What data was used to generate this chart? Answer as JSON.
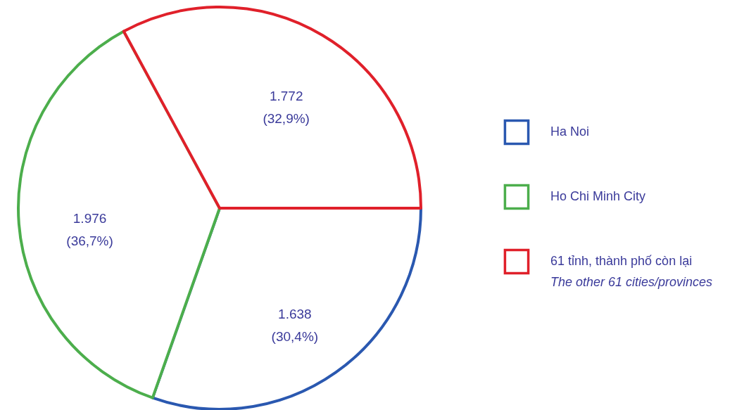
{
  "chart_data": {
    "type": "pie",
    "categories": [
      "Ha Noi",
      "Ho Chi Minh City",
      "61 tỉnh, thành phố còn lại\nThe other 61 cities/provinces"
    ],
    "values": [
      30.4,
      36.7,
      32.9
    ],
    "value_labels": [
      "1.638\n(30,4%)",
      "1.976\n(36,7%)",
      "1.772\n(32,9%)"
    ],
    "colors": [
      "#2a58b0",
      "#4cae4c",
      "#e0202a"
    ],
    "legend": "right"
  }
}
